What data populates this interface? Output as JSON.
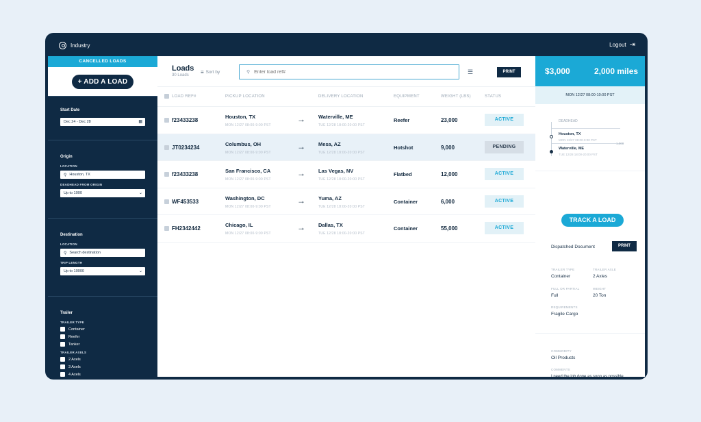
{
  "topbar": {
    "brand": "Industry",
    "logout": "Logout"
  },
  "sidebar": {
    "cancelled": "CANCELLED LOADS",
    "add_load": "+ ADD A LOAD",
    "start_date": {
      "title": "Start Date",
      "value": "Dec 24 - Dec 28"
    },
    "origin": {
      "title": "Origin",
      "location_label": "LOCATION",
      "location_value": "Houston, TX",
      "deadhead_label": "DEADHEAD FROM ORIGIN",
      "deadhead_value": "Up to 1000"
    },
    "destination": {
      "title": "Destination",
      "location_label": "LOCATION",
      "location_placeholder": "Search destination",
      "trip_label": "TRIP LENGTH",
      "trip_value": "Up to 10000"
    },
    "trailer": {
      "title": "Trailer",
      "type_label": "TRAILER TYPE",
      "types": [
        "Container",
        "Reefer",
        "Tanker"
      ],
      "axles_label": "TRAILER AXELS",
      "axles": [
        "2 Axels",
        "3 Axels",
        "4 Axels"
      ]
    }
  },
  "main": {
    "title": "Loads",
    "count": "30 Loads",
    "sort_label": "Sort by",
    "search_placeholder": "Enter load ref#",
    "print": "PRINT",
    "columns": [
      "LOAD REF#",
      "PICKUP LOCATION",
      "DELIVERY LOCATION",
      "EQUIPMENT",
      "WEIGHT (LBS)",
      "STATUS"
    ],
    "rows": [
      {
        "ref": "f23433238",
        "pickup": "Houston, TX",
        "pickup_time": "MON    12/27    08:00-9:00 PST",
        "delivery": "Waterville, ME",
        "delivery_time": "TUE    12/28    18:00-20:00 PST",
        "equipment": "Reefer",
        "weight": "23,000",
        "status": "ACTIVE"
      },
      {
        "ref": "JT0234234",
        "pickup": "Columbus, OH",
        "pickup_time": "MON    12/27    08:00-9:00 PST",
        "delivery": "Mesa, AZ",
        "delivery_time": "TUE    12/28    18:00-20:00 PST",
        "equipment": "Hotshot",
        "weight": "9,000",
        "status": "PENDING"
      },
      {
        "ref": "f23433238",
        "pickup": "San Francisco, CA",
        "pickup_time": "MON    12/27    08:00-9:00 PST",
        "delivery": "Las Vegas, NV",
        "delivery_time": "TUE    12/28    18:00-20:00 PST",
        "equipment": "Flatbed",
        "weight": "12,000",
        "status": "ACTIVE"
      },
      {
        "ref": "WF453533",
        "pickup": "Washington, DC",
        "pickup_time": "MON    12/27    08:00-9:00 PST",
        "delivery": "Yuma, AZ",
        "delivery_time": "TUE    12/28    18:00-20:00 PST",
        "equipment": "Container",
        "weight": "6,000",
        "status": "ACTIVE"
      },
      {
        "ref": "FH2342442",
        "pickup": "Chicago, IL",
        "pickup_time": "MON    12/27    08:00-9:00 PST",
        "delivery": "Dallas, TX",
        "delivery_time": "TUE    12/28    18:00-20:00 PST",
        "equipment": "Container",
        "weight": "55,000",
        "status": "ACTIVE"
      }
    ]
  },
  "detail": {
    "price": "$3,000",
    "miles": "2,000 miles",
    "date": "MON    12/27    08:00-10:00 PST",
    "deadhead": "DEADHEAD",
    "origin_city": "Houston, TX",
    "origin_time": "MON    12/27    08:00-9:00 PST",
    "dest_city": "Waterville, ME",
    "dest_time": "TUE    12/28    18:00-20:00 PST",
    "distance_label": "1,000",
    "track": "TRACK A LOAD",
    "dispatched": "Dispatched Document",
    "print": "PRINT",
    "trailer_type_label": "TRAILER TYPE",
    "trailer_type": "Container",
    "trailer_axle_label": "TRAILER AXLE",
    "trailer_axle": "2 Axles",
    "full_partial_label": "FULL OR PARTIAL",
    "full_partial": "Full",
    "weight_label": "WEIGHT",
    "weight": "20 Ton",
    "requirements_label": "REQUIREMENTS",
    "requirements": "Fragile Cargo",
    "commodity_label": "COMMODITY",
    "commodity": "Oil Products",
    "comments_label": "COMMENTS",
    "comments": "I need the job done as soon as possible, because my work is getting late. I need a fast and secure service."
  }
}
